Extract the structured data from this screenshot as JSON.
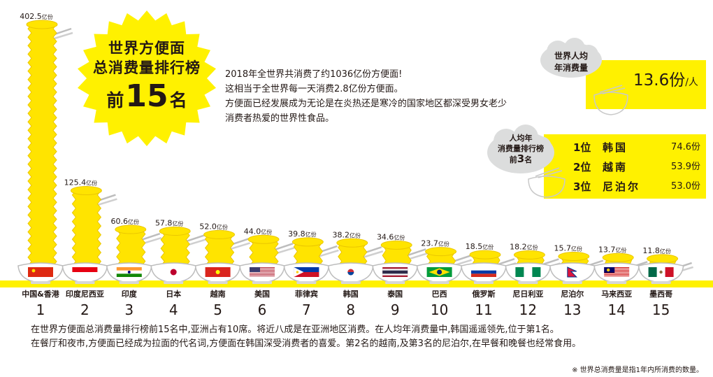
{
  "header": {
    "title_line1": "世界方便面",
    "title_line2": "总消费量排行榜",
    "title_rank_prefix": "前",
    "title_rank_number": "15",
    "title_rank_suffix": "名"
  },
  "intro": [
    "2018年全世界共消费了约1036亿份方便面!",
    "这相当于全世界每一天消费2.8亿份方便面。",
    "方便面已经发展成为无论是在炎热还是寒冷的国家地区都深受男女老少",
    "消费者热爱的世界性食品。"
  ],
  "per_capita": {
    "label_line1": "世界人均",
    "label_line2": "年消费量",
    "value": "13.6份",
    "unit": "/人"
  },
  "per_capita_top3": {
    "label_line1": "人均年",
    "label_line2": "消费量排行榜",
    "label_line3_prefix": "前",
    "label_line3_number": "3",
    "label_line3_suffix": "名",
    "rows": [
      {
        "rank": "1位",
        "country": "韩国",
        "value": "74.6份"
      },
      {
        "rank": "2位",
        "country": "越南",
        "value": "53.9份"
      },
      {
        "rank": "3位",
        "country": "尼泊尔",
        "value": "53.0份"
      }
    ]
  },
  "summary": [
    "在世界方便面总消费量排行榜前15名中,亚洲占有10席。将近八成是在亚洲地区消费。在人均年消费量中,韩国遥遥领先,位于第1名。",
    "在餐厅和夜市,方便面已经成为拉面的代名词,方便面在韩国深受消费者的喜爱。第2名的越南,及第3名的尼泊尔,在早餐和晚餐也经常食用。"
  ],
  "footnote": "※ 世界总消费量是指1年内所消费的数量。",
  "colors": {
    "accent": "#fff100",
    "noodle": "#ffe400",
    "noodle_edge": "#eac600",
    "text": "#231815",
    "cloud": "#dcdddd"
  },
  "chart_data": {
    "type": "bar",
    "unit": "亿份",
    "categories": [
      "中国&香港",
      "印度尼西亚",
      "印度",
      "日本",
      "越南",
      "美国",
      "菲律宾",
      "韩国",
      "泰国",
      "巴西",
      "俄罗斯",
      "尼日利亚",
      "尼泊尔",
      "马来西亚",
      "墨西哥"
    ],
    "ranks": [
      "1",
      "2",
      "3",
      "4",
      "5",
      "6",
      "7",
      "8",
      "9",
      "10",
      "11",
      "12",
      "13",
      "14",
      "15"
    ],
    "values": [
      402.5,
      125.4,
      60.6,
      57.8,
      52.0,
      44.0,
      39.8,
      38.2,
      34.6,
      23.7,
      18.5,
      18.2,
      15.7,
      13.7,
      11.8
    ],
    "value_labels": [
      "402.5",
      "125.4",
      "60.6",
      "57.8",
      "52.0",
      "44.0",
      "39.8",
      "38.2",
      "34.6",
      "23.7",
      "18.5",
      "18.2",
      "15.7",
      "13.7",
      "11.8"
    ],
    "flag_icons": [
      "flag-china-icon",
      "flag-indonesia-icon",
      "flag-india-icon",
      "flag-japan-icon",
      "flag-vietnam-icon",
      "flag-usa-icon",
      "flag-philippines-icon",
      "flag-korea-icon",
      "flag-thailand-icon",
      "flag-brazil-icon",
      "flag-russia-icon",
      "flag-nigeria-icon",
      "flag-nepal-icon",
      "flag-malaysia-icon",
      "flag-mexico-icon"
    ],
    "ylim": [
      0,
      402.5
    ],
    "grid": false,
    "legend": "none"
  }
}
